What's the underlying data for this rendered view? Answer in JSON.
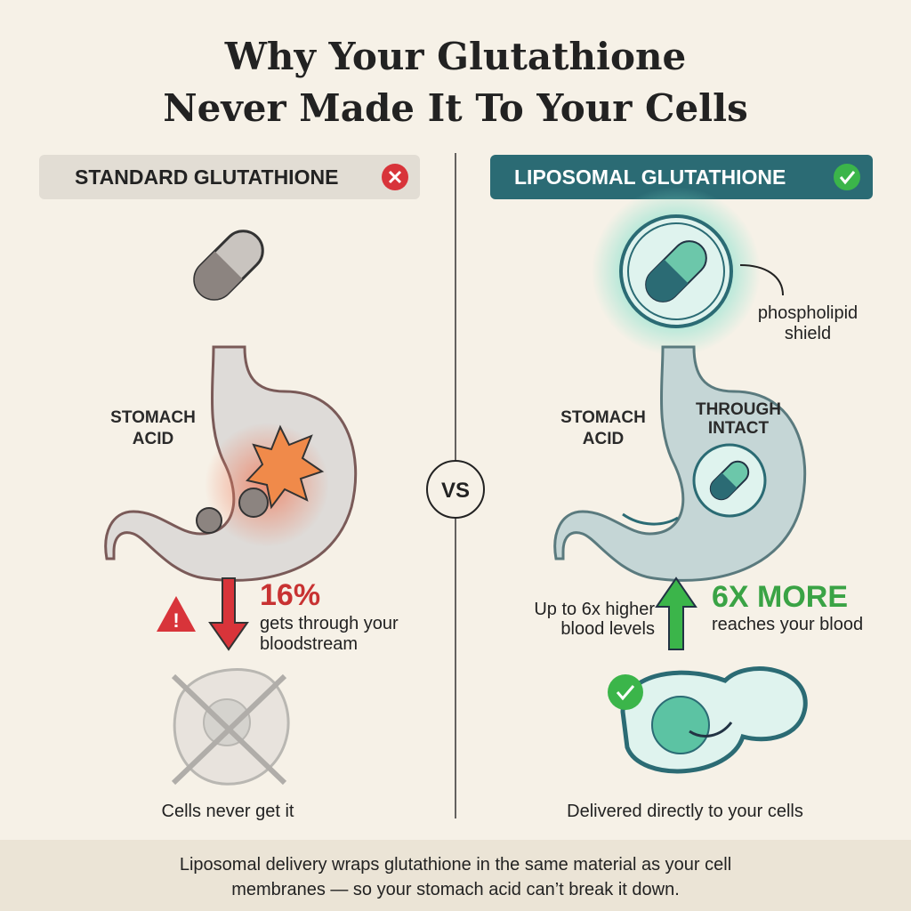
{
  "title": [
    "Why Your Glutathione",
    "Never Made It To Your Cells"
  ],
  "left": {
    "badge": "STANDARD GLUTATHIONE",
    "stomach_label": [
      "STOMACH",
      "ACID"
    ],
    "stat": "16%",
    "stat_caption": [
      "gets through  your",
      "bloodstream"
    ],
    "cell_caption": "Cells never get it"
  },
  "vs": "VS",
  "right": {
    "badge": "LIPOSOMAL GLUTATHIONE",
    "shield_label": [
      "phospholipid",
      "shield"
    ],
    "stomach_label": [
      "STOMACH",
      "ACID"
    ],
    "intact_label": [
      "THROUGH",
      "INTACT"
    ],
    "side_note": [
      "Up to 6x higher",
      "blood levels"
    ],
    "stat": "6X MORE",
    "stat_caption": "reaches your blood",
    "cell_caption": "Delivered directly to your cells"
  },
  "footer": [
    "Liposomal delivery wraps glutathione in the same material as your cell",
    "membranes — so your stomach acid can’t break it down."
  ]
}
